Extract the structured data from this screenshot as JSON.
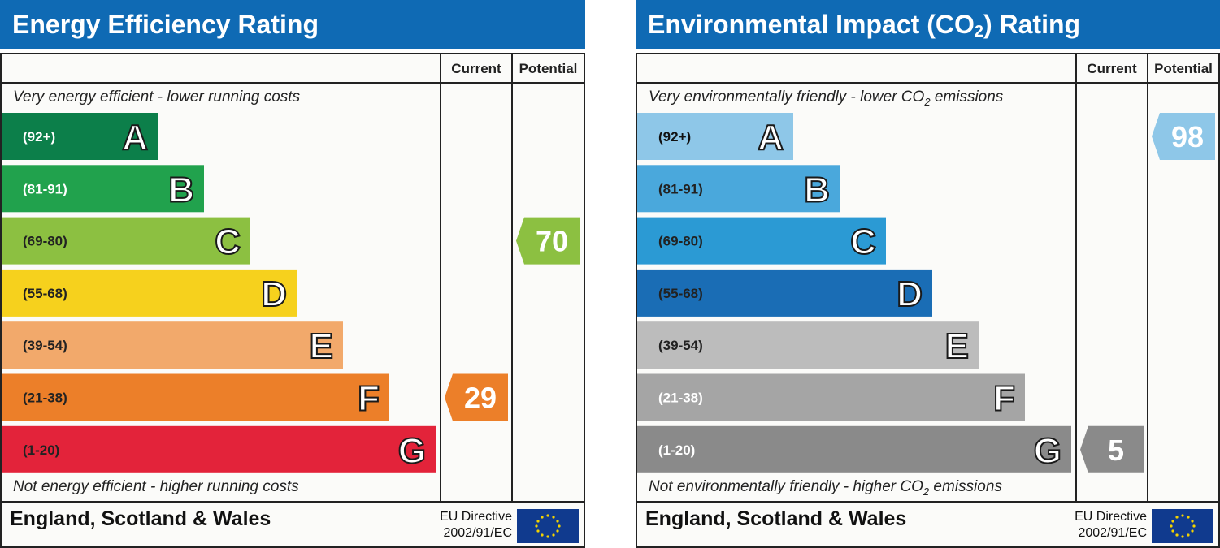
{
  "chart_data": [
    {
      "type": "bar",
      "title": "Energy Efficiency Rating",
      "columns": [
        "Current",
        "Potential"
      ],
      "top_caption": "Very energy efficient - lower running costs",
      "bottom_caption": "Not energy efficient - higher running costs",
      "bands": [
        {
          "range": "(92+)",
          "letter": "A",
          "color": "#0c7f4a",
          "text_color": "#ffffff"
        },
        {
          "range": "(81-91)",
          "letter": "B",
          "color": "#21a24d",
          "text_color": "#ffffff"
        },
        {
          "range": "(69-80)",
          "letter": "C",
          "color": "#8cc041",
          "text_color": "#222222"
        },
        {
          "range": "(55-68)",
          "letter": "D",
          "color": "#f6d11d",
          "text_color": "#222222"
        },
        {
          "range": "(39-54)",
          "letter": "E",
          "color": "#f2a96b",
          "text_color": "#222222"
        },
        {
          "range": "(21-38)",
          "letter": "F",
          "color": "#ec7f29",
          "text_color": "#222222"
        },
        {
          "range": "(1-20)",
          "letter": "G",
          "color": "#e3233a",
          "text_color": "#222222"
        }
      ],
      "current": {
        "value": "29",
        "band": "F",
        "color": "#ec7f29"
      },
      "potential": {
        "value": "70",
        "band": "C",
        "color": "#8cc041"
      },
      "footer": "England, Scotland & Wales",
      "directive_line1": "EU Directive",
      "directive_line2": "2002/91/EC"
    },
    {
      "type": "bar",
      "title": "Environmental Impact (CO",
      "title_sub": "2",
      "title_suffix": ") Rating",
      "columns": [
        "Current",
        "Potential"
      ],
      "top_caption": "Very environmentally friendly - lower CO",
      "top_caption_sub": "2",
      "top_caption_suffix": " emissions",
      "bottom_caption": "Not environmentally friendly - higher CO",
      "bottom_caption_sub": "2",
      "bottom_caption_suffix": " emissions",
      "bands": [
        {
          "range": "(92+)",
          "letter": "A",
          "color": "#8ec7e8",
          "text_color": "#111111"
        },
        {
          "range": "(81-91)",
          "letter": "B",
          "color": "#4aa8dc",
          "text_color": "#222222"
        },
        {
          "range": "(69-80)",
          "letter": "C",
          "color": "#2b9ad4",
          "text_color": "#222222"
        },
        {
          "range": "(55-68)",
          "letter": "D",
          "color": "#1a6db5",
          "text_color": "#222222"
        },
        {
          "range": "(39-54)",
          "letter": "E",
          "color": "#bcbcbc",
          "text_color": "#222222"
        },
        {
          "range": "(21-38)",
          "letter": "F",
          "color": "#a5a5a5",
          "text_color": "#ffffff"
        },
        {
          "range": "(1-20)",
          "letter": "G",
          "color": "#8a8a8a",
          "text_color": "#ffffff"
        }
      ],
      "current": {
        "value": "5",
        "band": "G",
        "color": "#8a8a8a"
      },
      "potential": {
        "value": "98",
        "band": "A",
        "color": "#8ec7e8"
      },
      "footer": "England, Scotland & Wales",
      "directive_line1": "EU Directive",
      "directive_line2": "2002/91/EC"
    }
  ]
}
